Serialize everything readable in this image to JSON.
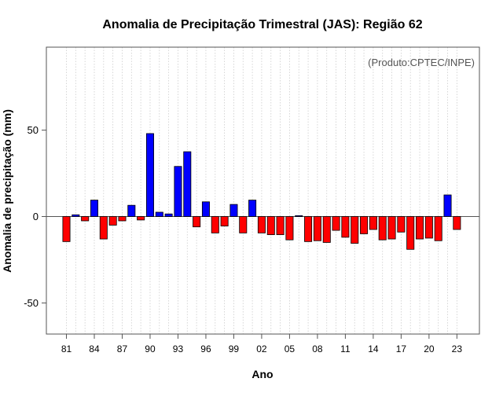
{
  "chart_data": {
    "type": "bar",
    "title": "Anomalia de Precipitação Trimestral (JAS): Região 62",
    "xlabel": "Ano",
    "ylabel": "Anomalia de precipitação (mm)",
    "credit": "(Produto:CPTEC/INPE)",
    "ylim": [
      -68,
      98
    ],
    "yticks": [
      -50,
      0,
      50
    ],
    "grid": "vertical dotted",
    "positive_color": "#0000ff",
    "negative_color": "#ff0000",
    "categories": [
      "81",
      "82",
      "83",
      "84",
      "85",
      "86",
      "87",
      "88",
      "89",
      "90",
      "91",
      "92",
      "93",
      "94",
      "95",
      "96",
      "97",
      "98",
      "99",
      "00",
      "01",
      "02",
      "03",
      "04",
      "05",
      "06",
      "07",
      "08",
      "09",
      "10",
      "11",
      "12",
      "13",
      "14",
      "15",
      "16",
      "17",
      "18",
      "19",
      "20",
      "21",
      "22",
      "23"
    ],
    "xtick_labels": [
      "81",
      "84",
      "87",
      "90",
      "93",
      "96",
      "99",
      "02",
      "05",
      "08",
      "11",
      "14",
      "17",
      "20",
      "23"
    ],
    "values": [
      -14.5,
      1,
      -2.5,
      9.5,
      -13,
      -5,
      -2.5,
      6.5,
      -2,
      48,
      2.5,
      1.5,
      29,
      37.5,
      -6,
      8.5,
      -9.5,
      -5.5,
      7,
      -9.5,
      9.5,
      -9.5,
      -10.5,
      -10.5,
      -13.5,
      0.5,
      -14.5,
      -14,
      -15,
      -8,
      -12,
      -15.5,
      -10,
      -7.5,
      -13.5,
      -13,
      -9,
      -19,
      -13,
      -12.5,
      -14,
      12.5,
      -7.5
    ]
  }
}
